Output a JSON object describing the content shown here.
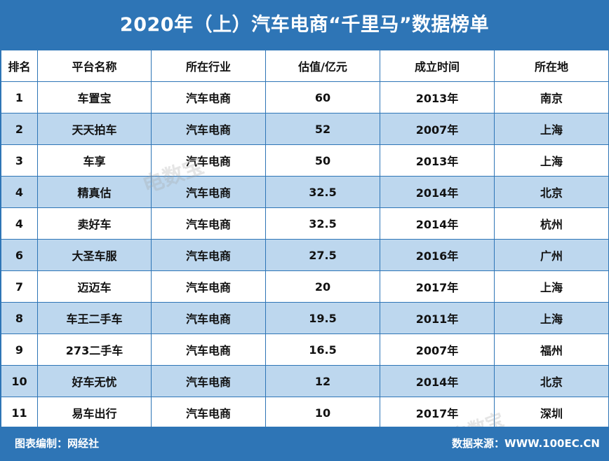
{
  "title": "2020年（上）汽车电商“千里马”数据榜单",
  "chart_data": {
    "type": "table",
    "columns": [
      "排名",
      "平台名称",
      "所在行业",
      "估值/亿元",
      "成立时间",
      "所在地"
    ],
    "rows": [
      [
        "1",
        "车置宝",
        "汽车电商",
        "60",
        "2013年",
        "南京"
      ],
      [
        "2",
        "天天拍车",
        "汽车电商",
        "52",
        "2007年",
        "上海"
      ],
      [
        "3",
        "车享",
        "汽车电商",
        "50",
        "2013年",
        "上海"
      ],
      [
        "4",
        "精真估",
        "汽车电商",
        "32.5",
        "2014年",
        "北京"
      ],
      [
        "4",
        "卖好车",
        "汽车电商",
        "32.5",
        "2014年",
        "杭州"
      ],
      [
        "6",
        "大圣车服",
        "汽车电商",
        "27.5",
        "2016年",
        "广州"
      ],
      [
        "7",
        "迈迈车",
        "汽车电商",
        "20",
        "2017年",
        "上海"
      ],
      [
        "8",
        "车王二手车",
        "汽车电商",
        "19.5",
        "2011年",
        "上海"
      ],
      [
        "9",
        "273二手车",
        "汽车电商",
        "16.5",
        "2007年",
        "福州"
      ],
      [
        "10",
        "好车无忧",
        "汽车电商",
        "12",
        "2014年",
        "北京"
      ],
      [
        "11",
        "易车出行",
        "汽车电商",
        "10",
        "2017年",
        "深圳"
      ]
    ]
  },
  "footer": {
    "left": "图表编制：网经社",
    "right": "数据来源：WWW.100EC.CN"
  },
  "watermark": {
    "text": "电数宝"
  },
  "colors": {
    "header_blue": "#2e75b6",
    "alt_row": "#bdd7ee"
  }
}
